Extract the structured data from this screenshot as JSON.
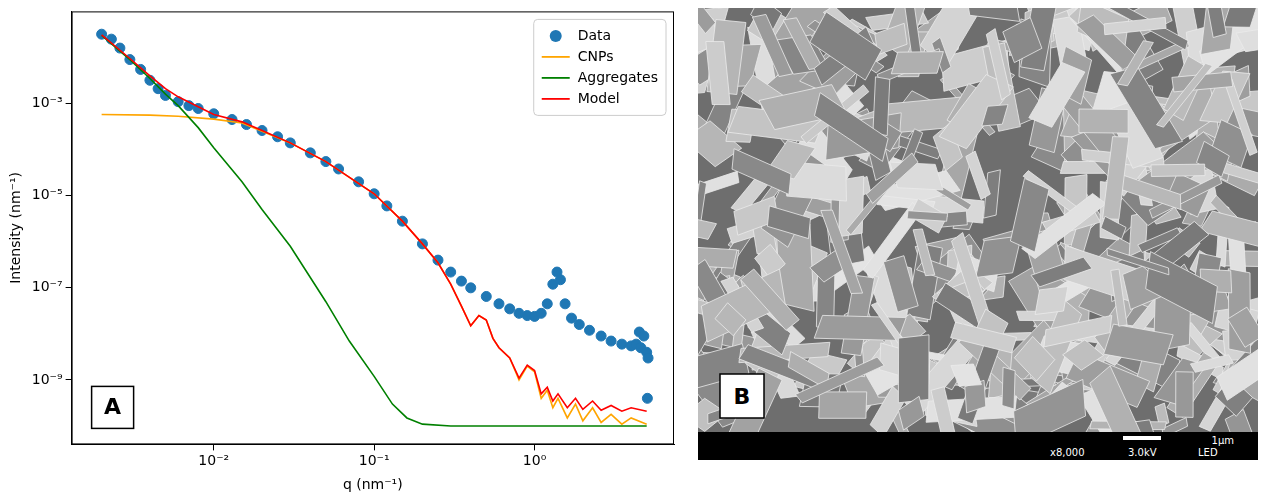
{
  "chart_data": {
    "type": "scatter",
    "annotations": [
      "A"
    ],
    "x_label": "q (nm⁻¹)",
    "y_label": "Intensity (nm⁻¹)",
    "log": true,
    "grid": false,
    "legend": "upper right",
    "xlim": [
      0.0013,
      7.4
    ],
    "ylim": [
      4e-11,
      0.1
    ],
    "xticks": [
      {
        "value": 0.01,
        "label": "10⁻²"
      },
      {
        "value": 0.1,
        "label": "10⁻¹"
      },
      {
        "value": 1,
        "label": "10⁰"
      }
    ],
    "yticks": [
      {
        "value": 1e-09,
        "label": "10⁻⁹"
      },
      {
        "value": 1e-07,
        "label": "10⁻⁷"
      },
      {
        "value": 1e-05,
        "label": "10⁻⁵"
      },
      {
        "value": 0.001,
        "label": "10⁻³"
      }
    ],
    "series": [
      {
        "name": "Data",
        "color": "#1f77b4",
        "type": "scatter",
        "marker": "circle",
        "x": [
          0.002,
          0.0023,
          0.0026,
          0.003,
          0.0035,
          0.004,
          0.0045,
          0.005,
          0.006,
          0.007,
          0.008,
          0.01,
          0.013,
          0.016,
          0.02,
          0.025,
          0.03,
          0.04,
          0.05,
          0.06,
          0.08,
          0.1,
          0.12,
          0.15,
          0.2,
          0.25,
          0.3,
          0.35,
          0.4,
          0.5,
          0.6,
          0.7,
          0.8,
          0.9,
          1.0,
          1.1,
          1.2,
          1.3,
          1.38,
          1.45,
          1.55,
          1.7,
          1.9,
          2.2,
          2.6,
          3.0,
          3.5,
          4.0,
          4.3,
          4.5,
          4.6,
          4.8,
          5.0,
          5.1,
          5.05
        ],
        "values": [
          0.032,
          0.025,
          0.016,
          0.009,
          0.0055,
          0.0032,
          0.0021,
          0.0015,
          0.0011,
          0.0009,
          0.00078,
          0.0006,
          0.00045,
          0.00035,
          0.00026,
          0.00019,
          0.00014,
          8.5e-05,
          5.5e-05,
          3.8e-05,
          2e-05,
          1.1e-05,
          6e-06,
          2.8e-06,
          9e-07,
          4e-07,
          2.2e-07,
          1.4e-07,
          1e-07,
          6.5e-08,
          4.5e-08,
          3.5e-08,
          2.8e-08,
          2.5e-08,
          2.4e-08,
          2.8e-08,
          4.5e-08,
          1.2e-07,
          2.2e-07,
          1.5e-07,
          4.5e-08,
          2.2e-08,
          1.6e-08,
          1.2e-08,
          9e-09,
          7e-09,
          6e-09,
          5.5e-09,
          6e-09,
          1.1e-08,
          5e-09,
          9e-09,
          4e-09,
          3e-09,
          4e-10
        ]
      },
      {
        "name": "CNPs",
        "color": "#ffa500",
        "type": "line",
        "line_style": "solid",
        "x": [
          0.002,
          0.004,
          0.006,
          0.01,
          0.015,
          0.02,
          0.03,
          0.05,
          0.1,
          0.15,
          0.2,
          0.25,
          0.3,
          0.35,
          0.4,
          0.45,
          0.5,
          0.55,
          0.6,
          0.7,
          0.8,
          0.9,
          1.0,
          1.1,
          1.2,
          1.3,
          1.4,
          1.6,
          1.8,
          2.0,
          2.3,
          2.6,
          3.0,
          3.5,
          4.0,
          5.0
        ],
        "values": [
          0.00058,
          0.00056,
          0.00053,
          0.00046,
          0.00038,
          0.00025,
          0.00014,
          5.5e-05,
          1.1e-05,
          2.8e-06,
          9e-07,
          3.5e-07,
          1.2e-07,
          4e-08,
          1.5e-08,
          2.5e-08,
          2e-08,
          8e-09,
          5e-09,
          3e-09,
          1e-09,
          2e-09,
          1.5e-09,
          4e-10,
          6e-10,
          2.5e-10,
          4e-10,
          1.5e-10,
          3e-10,
          1.3e-10,
          2.5e-10,
          1.2e-10,
          1.8e-10,
          1.1e-10,
          1.5e-10,
          1.1e-10
        ]
      },
      {
        "name": "Aggregates",
        "color": "#008000",
        "type": "line",
        "line_style": "solid",
        "x": [
          0.002,
          0.003,
          0.004,
          0.005,
          0.006,
          0.008,
          0.01,
          0.015,
          0.02,
          0.03,
          0.05,
          0.07,
          0.1,
          0.13,
          0.16,
          0.2,
          0.3,
          1.0,
          5.0
        ],
        "values": [
          0.03,
          0.009,
          0.0035,
          0.0016,
          0.0009,
          0.0003,
          0.00011,
          2e-05,
          5e-06,
          8e-07,
          5e-08,
          7e-09,
          1.2e-09,
          3e-10,
          1.5e-10,
          1.1e-10,
          1e-10,
          1e-10,
          1e-10
        ]
      },
      {
        "name": "Model",
        "color": "#ff0000",
        "type": "line",
        "line_style": "solid",
        "x": [
          0.002,
          0.003,
          0.004,
          0.005,
          0.006,
          0.008,
          0.01,
          0.015,
          0.02,
          0.03,
          0.05,
          0.1,
          0.15,
          0.2,
          0.25,
          0.3,
          0.35,
          0.4,
          0.45,
          0.5,
          0.55,
          0.6,
          0.7,
          0.8,
          0.9,
          1.0,
          1.1,
          1.2,
          1.3,
          1.4,
          1.6,
          1.8,
          2.0,
          2.3,
          2.6,
          3.0,
          3.5,
          4.0,
          5.0
        ],
        "values": [
          0.031,
          0.0095,
          0.004,
          0.0021,
          0.0014,
          0.00085,
          0.00058,
          0.0004,
          0.00026,
          0.00014,
          5.5e-05,
          1.1e-05,
          2.8e-06,
          9e-07,
          3.5e-07,
          1.2e-07,
          4e-08,
          1.5e-08,
          2.5e-08,
          2e-08,
          8e-09,
          5e-09,
          3e-09,
          1.1e-09,
          2.1e-09,
          1.6e-09,
          5e-10,
          7e-10,
          3.5e-10,
          5e-10,
          2.5e-10,
          4e-10,
          2.3e-10,
          3.5e-10,
          2.2e-10,
          2.8e-10,
          2.1e-10,
          2.5e-10,
          2.1e-10
        ]
      }
    ]
  },
  "image_panel": {
    "annotations": [
      "B"
    ],
    "scale_bar_label": "1µm",
    "footer": [
      "x8,000",
      "3.0kV",
      "LED"
    ]
  }
}
